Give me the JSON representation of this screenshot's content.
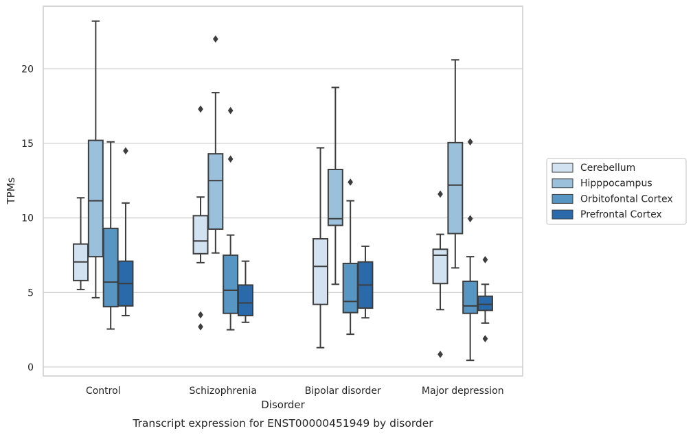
{
  "chart_data": {
    "type": "boxplot",
    "caption": "Transcript expression for ENST00000451949 by disorder",
    "xlabel": "Disorder",
    "ylabel": "TPMs",
    "ylim": [
      -0.6,
      24.2
    ],
    "yticks": [
      0,
      5,
      10,
      15,
      20
    ],
    "grid": "horizontal",
    "legend_position": "right",
    "categories": [
      "Control",
      "Schizophrenia",
      "Bipolar disorder",
      "Major depression"
    ],
    "series": [
      {
        "name": "Cerebellum",
        "color": "#d3e2f1",
        "boxes": [
          {
            "whislo": 5.2,
            "q1": 5.8,
            "med": 7.05,
            "q3": 8.25,
            "whishi": 11.35,
            "fliers": []
          },
          {
            "whislo": 7.0,
            "q1": 7.6,
            "med": 8.45,
            "q3": 10.15,
            "whishi": 11.4,
            "fliers": [
              17.3,
              3.5,
              2.7
            ]
          },
          {
            "whislo": 1.3,
            "q1": 4.2,
            "med": 6.75,
            "q3": 8.6,
            "whishi": 14.7,
            "fliers": []
          },
          {
            "whislo": 3.85,
            "q1": 5.6,
            "med": 7.5,
            "q3": 7.9,
            "whishi": 8.9,
            "fliers": [
              11.6,
              0.85
            ]
          }
        ]
      },
      {
        "name": "Hipppocampus",
        "color": "#9ac0dc",
        "boxes": [
          {
            "whislo": 4.65,
            "q1": 7.4,
            "med": 11.15,
            "q3": 15.2,
            "whishi": 23.2,
            "fliers": []
          },
          {
            "whislo": 7.65,
            "q1": 9.25,
            "med": 12.5,
            "q3": 14.3,
            "whishi": 18.4,
            "fliers": [
              22.0
            ]
          },
          {
            "whislo": 5.55,
            "q1": 9.5,
            "med": 9.95,
            "q3": 13.25,
            "whishi": 18.75,
            "fliers": []
          },
          {
            "whislo": 6.65,
            "q1": 8.95,
            "med": 12.2,
            "q3": 15.05,
            "whishi": 20.6,
            "fliers": []
          }
        ]
      },
      {
        "name": "Orbitofontal Cortex",
        "color": "#5795c3",
        "boxes": [
          {
            "whislo": 2.55,
            "q1": 4.05,
            "med": 5.7,
            "q3": 9.3,
            "whishi": 15.1,
            "fliers": []
          },
          {
            "whislo": 2.5,
            "q1": 3.6,
            "med": 5.15,
            "q3": 7.5,
            "whishi": 8.85,
            "fliers": [
              17.2,
              13.95
            ]
          },
          {
            "whislo": 2.2,
            "q1": 3.65,
            "med": 4.4,
            "q3": 6.95,
            "whishi": 11.15,
            "fliers": [
              12.4
            ]
          },
          {
            "whislo": 0.45,
            "q1": 3.6,
            "med": 4.1,
            "q3": 5.75,
            "whishi": 7.4,
            "fliers": [
              15.1,
              9.95
            ]
          }
        ]
      },
      {
        "name": "Prefrontal Cortex",
        "color": "#2a6aaa",
        "boxes": [
          {
            "whislo": 3.45,
            "q1": 4.1,
            "med": 5.6,
            "q3": 7.1,
            "whishi": 11.0,
            "fliers": [
              14.5
            ]
          },
          {
            "whislo": 3.0,
            "q1": 3.45,
            "med": 4.3,
            "q3": 5.5,
            "whishi": 7.1,
            "fliers": []
          },
          {
            "whislo": 3.3,
            "q1": 3.95,
            "med": 5.5,
            "q3": 7.05,
            "whishi": 8.1,
            "fliers": []
          },
          {
            "whislo": 2.95,
            "q1": 3.8,
            "med": 4.2,
            "q3": 4.75,
            "whishi": 5.55,
            "fliers": [
              7.2,
              1.9
            ]
          }
        ]
      }
    ]
  }
}
